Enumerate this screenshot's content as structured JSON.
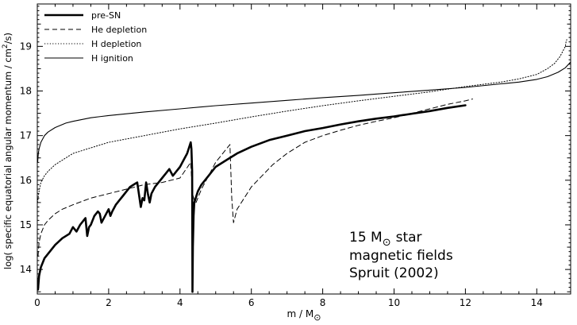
{
  "chart_data": {
    "type": "line",
    "xlabel": "m / M",
    "xlabel_sub": "⊙",
    "ylabel": "log( specific equatorial angular momentum / cm",
    "ylabel_sup": "2",
    "ylabel_tail": "/s)",
    "xlim": [
      0,
      14.95
    ],
    "ylim": [
      13.45,
      19.95
    ],
    "x_ticks": [
      0,
      2,
      4,
      6,
      8,
      10,
      12,
      14
    ],
    "y_ticks": [
      14,
      15,
      16,
      17,
      18,
      19
    ],
    "grid": false,
    "legend_position": "top-left",
    "annotation": {
      "line1_prefix": "15 M",
      "line1_sub": "⊙",
      "line1_suffix": "star",
      "line2": "magnetic fields",
      "line3": "Spruit (2002)"
    },
    "series": [
      {
        "name": "pre-SN",
        "style": "solid-thick",
        "x": [
          0.02,
          0.05,
          0.1,
          0.2,
          0.35,
          0.5,
          0.7,
          0.9,
          1.0,
          1.1,
          1.2,
          1.3,
          1.35,
          1.4,
          1.45,
          1.5,
          1.6,
          1.7,
          1.75,
          1.8,
          1.9,
          2.0,
          2.05,
          2.1,
          2.2,
          2.3,
          2.4,
          2.5,
          2.6,
          2.7,
          2.8,
          2.9,
          2.95,
          3.0,
          3.05,
          3.1,
          3.15,
          3.2,
          3.3,
          3.4,
          3.5,
          3.6,
          3.7,
          3.8,
          3.9,
          4.0,
          4.1,
          4.2,
          4.3,
          4.32,
          4.34,
          4.345,
          4.35,
          4.36,
          4.38,
          4.4,
          4.5,
          4.6,
          4.8,
          5.0,
          5.3,
          5.6,
          6.0,
          6.5,
          7.0,
          7.5,
          8.0,
          8.5,
          9.0,
          9.5,
          10.0,
          10.5,
          11.0,
          11.5,
          12.0
        ],
        "y": [
          13.55,
          13.85,
          14.05,
          14.25,
          14.4,
          14.55,
          14.7,
          14.8,
          14.95,
          14.85,
          15.0,
          15.1,
          15.15,
          14.75,
          14.95,
          15.0,
          15.2,
          15.3,
          15.25,
          15.05,
          15.2,
          15.35,
          15.2,
          15.3,
          15.45,
          15.55,
          15.65,
          15.75,
          15.85,
          15.9,
          15.95,
          15.4,
          15.6,
          15.55,
          15.95,
          15.7,
          15.5,
          15.7,
          15.85,
          15.95,
          16.05,
          16.15,
          16.25,
          16.1,
          16.2,
          16.3,
          16.45,
          16.6,
          16.85,
          16.7,
          16.2,
          15.0,
          13.5,
          14.5,
          15.2,
          15.5,
          15.75,
          15.9,
          16.1,
          16.3,
          16.45,
          16.6,
          16.75,
          16.9,
          17.0,
          17.1,
          17.17,
          17.25,
          17.32,
          17.38,
          17.43,
          17.49,
          17.55,
          17.62,
          17.68
        ]
      },
      {
        "name": "He depletion",
        "style": "dashed",
        "x": [
          0.02,
          0.05,
          0.1,
          0.2,
          0.3,
          0.5,
          0.7,
          1.0,
          1.5,
          2.0,
          2.5,
          3.0,
          3.5,
          4.0,
          4.3,
          4.35,
          4.4,
          4.45,
          4.6,
          4.8,
          5.0,
          5.2,
          5.4,
          5.45,
          5.5,
          5.6,
          5.8,
          6.0,
          6.3,
          6.6,
          7.0,
          7.5,
          8.0,
          8.5,
          9.0,
          9.5,
          10.0,
          10.5,
          11.0,
          11.5,
          12.0,
          12.2
        ],
        "y": [
          14.3,
          14.6,
          14.8,
          15.0,
          15.1,
          15.25,
          15.35,
          15.45,
          15.6,
          15.7,
          15.8,
          15.9,
          15.95,
          16.05,
          16.4,
          15.7,
          15.55,
          15.5,
          15.8,
          16.1,
          16.4,
          16.6,
          16.8,
          15.6,
          15.05,
          15.35,
          15.6,
          15.85,
          16.1,
          16.35,
          16.6,
          16.85,
          17.0,
          17.12,
          17.23,
          17.32,
          17.4,
          17.5,
          17.6,
          17.7,
          17.78,
          17.82
        ]
      },
      {
        "name": "H depletion",
        "style": "dotted",
        "x": [
          0.01,
          0.03,
          0.05,
          0.1,
          0.2,
          0.3,
          0.5,
          1.0,
          2.0,
          3.0,
          4.0,
          5.0,
          6.0,
          7.0,
          8.0,
          9.0,
          10.0,
          11.0,
          12.0,
          13.0,
          13.5,
          14.0,
          14.3,
          14.5,
          14.65,
          14.75,
          14.8,
          14.82,
          14.84
        ],
        "y": [
          15.5,
          15.65,
          15.75,
          15.95,
          16.1,
          16.2,
          16.35,
          16.6,
          16.85,
          17.0,
          17.15,
          17.28,
          17.42,
          17.55,
          17.67,
          17.78,
          17.88,
          17.98,
          18.1,
          18.2,
          18.27,
          18.37,
          18.5,
          18.62,
          18.77,
          18.92,
          19.0,
          19.1,
          19.15
        ]
      },
      {
        "name": "H ignition",
        "style": "solid-thin",
        "x": [
          0.01,
          0.03,
          0.05,
          0.1,
          0.2,
          0.3,
          0.5,
          0.8,
          1.0,
          1.5,
          2.0,
          3.0,
          4.0,
          5.0,
          6.0,
          7.0,
          8.0,
          9.0,
          10.0,
          11.0,
          12.0,
          13.0,
          13.5,
          14.0,
          14.3,
          14.6,
          14.8,
          14.95
        ],
        "y": [
          16.4,
          16.6,
          16.7,
          16.85,
          17.0,
          17.08,
          17.18,
          17.28,
          17.32,
          17.4,
          17.45,
          17.53,
          17.6,
          17.67,
          17.73,
          17.79,
          17.85,
          17.9,
          17.96,
          18.02,
          18.08,
          18.16,
          18.2,
          18.26,
          18.32,
          18.42,
          18.52,
          18.65
        ]
      }
    ]
  }
}
